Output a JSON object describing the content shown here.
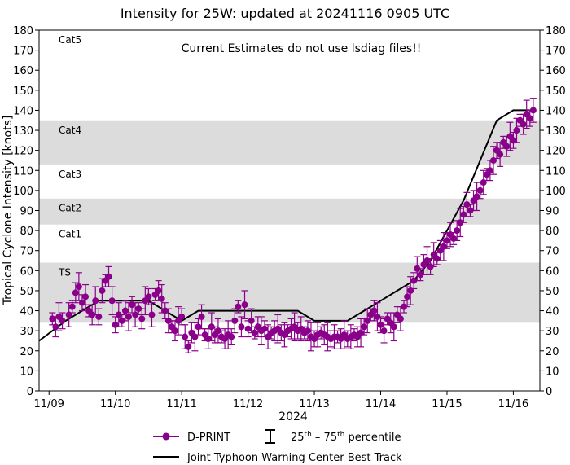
{
  "chart_data": {
    "type": "scatter",
    "title": "Intensity for 25W: updated at 20241116 0905 UTC",
    "annotation": "Current Estimates do not use lsdiag files!!",
    "ylabel": "Tropical Cyclone Intensity [knots]",
    "xlabel": "2024",
    "ylim": [
      0,
      180
    ],
    "yticks": [
      0,
      10,
      20,
      30,
      40,
      50,
      60,
      70,
      80,
      90,
      100,
      110,
      120,
      130,
      140,
      150,
      160,
      170,
      180
    ],
    "xlim": [
      -0.15,
      7.4
    ],
    "xticks": [
      {
        "pos": 0,
        "label": "11/09"
      },
      {
        "pos": 1,
        "label": "11/10"
      },
      {
        "pos": 2,
        "label": "11/11"
      },
      {
        "pos": 3,
        "label": "11/12"
      },
      {
        "pos": 4,
        "label": "11/13"
      },
      {
        "pos": 5,
        "label": "11/14"
      },
      {
        "pos": 6,
        "label": "11/15"
      },
      {
        "pos": 7,
        "label": "11/16"
      }
    ],
    "category_bands": [
      {
        "name": "TS",
        "low": 34,
        "high": 64,
        "shaded": true
      },
      {
        "name": "Cat1",
        "low": 64,
        "high": 83,
        "shaded": false
      },
      {
        "name": "Cat2",
        "low": 83,
        "high": 96,
        "shaded": true
      },
      {
        "name": "Cat3",
        "low": 96,
        "high": 113,
        "shaded": false
      },
      {
        "name": "Cat4",
        "low": 113,
        "high": 135,
        "shaded": true
      },
      {
        "name": "Cat5",
        "low": 135,
        "high": 180,
        "shaded": false
      }
    ],
    "colors": {
      "dprint": "#8b008b",
      "best_track": "#000000",
      "band": "#dcdcdc"
    },
    "series": [
      {
        "name": "Joint Typhoon Warning Center Best Track",
        "kind": "line",
        "x": [
          -0.15,
          0.25,
          0.75,
          1.0,
          1.5,
          1.75,
          2.0,
          2.25,
          2.5,
          2.75,
          3.0,
          3.25,
          3.5,
          3.75,
          4.0,
          4.25,
          4.5,
          4.75,
          5.0,
          5.25,
          5.5,
          5.75,
          6.0,
          6.25,
          6.5,
          6.75,
          7.0,
          7.25
        ],
        "y": [
          25,
          35,
          45,
          45,
          45,
          40,
          35,
          40,
          40,
          40,
          40,
          40,
          40,
          40,
          35,
          35,
          35,
          40,
          45,
          50,
          55,
          65,
          80,
          95,
          115,
          135,
          140,
          140
        ]
      },
      {
        "name": "D-PRINT",
        "kind": "points_with_errorbars",
        "errorbar_legend": "25th – 75th percentile",
        "points": [
          [
            0.05,
            36
          ],
          [
            0.1,
            32
          ],
          [
            0.15,
            37
          ],
          [
            0.2,
            35
          ],
          [
            0.3,
            38
          ],
          [
            0.35,
            42
          ],
          [
            0.4,
            49
          ],
          [
            0.45,
            52
          ],
          [
            0.5,
            44
          ],
          [
            0.55,
            47
          ],
          [
            0.6,
            40
          ],
          [
            0.65,
            38
          ],
          [
            0.7,
            45
          ],
          [
            0.75,
            37
          ],
          [
            0.8,
            50
          ],
          [
            0.85,
            55
          ],
          [
            0.9,
            57
          ],
          [
            0.95,
            45
          ],
          [
            1.0,
            33
          ],
          [
            1.05,
            38
          ],
          [
            1.1,
            35
          ],
          [
            1.15,
            40
          ],
          [
            1.2,
            37
          ],
          [
            1.25,
            43
          ],
          [
            1.3,
            38
          ],
          [
            1.35,
            41
          ],
          [
            1.4,
            36
          ],
          [
            1.45,
            45
          ],
          [
            1.5,
            47
          ],
          [
            1.55,
            38
          ],
          [
            1.6,
            48
          ],
          [
            1.65,
            50
          ],
          [
            1.7,
            46
          ],
          [
            1.75,
            40
          ],
          [
            1.8,
            35
          ],
          [
            1.85,
            32
          ],
          [
            1.9,
            30
          ],
          [
            1.95,
            35
          ],
          [
            2.0,
            37
          ],
          [
            2.05,
            27
          ],
          [
            2.1,
            22
          ],
          [
            2.15,
            29
          ],
          [
            2.2,
            27
          ],
          [
            2.25,
            32
          ],
          [
            2.3,
            37
          ],
          [
            2.35,
            28
          ],
          [
            2.4,
            26
          ],
          [
            2.45,
            32
          ],
          [
            2.5,
            28
          ],
          [
            2.55,
            30
          ],
          [
            2.6,
            27
          ],
          [
            2.65,
            26
          ],
          [
            2.7,
            28
          ],
          [
            2.75,
            27
          ],
          [
            2.8,
            35
          ],
          [
            2.85,
            42
          ],
          [
            2.9,
            32
          ],
          [
            2.95,
            43
          ],
          [
            3.0,
            31
          ],
          [
            3.05,
            35
          ],
          [
            3.1,
            29
          ],
          [
            3.15,
            32
          ],
          [
            3.2,
            30
          ],
          [
            3.25,
            31
          ],
          [
            3.3,
            27
          ],
          [
            3.35,
            29
          ],
          [
            3.4,
            30
          ],
          [
            3.45,
            31
          ],
          [
            3.5,
            29
          ],
          [
            3.55,
            28
          ],
          [
            3.6,
            30
          ],
          [
            3.65,
            31
          ],
          [
            3.7,
            32
          ],
          [
            3.75,
            30
          ],
          [
            3.8,
            31
          ],
          [
            3.85,
            29
          ],
          [
            3.9,
            30
          ],
          [
            3.95,
            27
          ],
          [
            4.0,
            26
          ],
          [
            4.05,
            28
          ],
          [
            4.1,
            29
          ],
          [
            4.15,
            28
          ],
          [
            4.2,
            27
          ],
          [
            4.25,
            26
          ],
          [
            4.3,
            27
          ],
          [
            4.35,
            27
          ],
          [
            4.4,
            26
          ],
          [
            4.45,
            28
          ],
          [
            4.5,
            26
          ],
          [
            4.55,
            27
          ],
          [
            4.6,
            28
          ],
          [
            4.65,
            27
          ],
          [
            4.7,
            29
          ],
          [
            4.75,
            32
          ],
          [
            4.8,
            35
          ],
          [
            4.85,
            38
          ],
          [
            4.9,
            40
          ],
          [
            4.95,
            37
          ],
          [
            5.0,
            33
          ],
          [
            5.05,
            30
          ],
          [
            5.1,
            36
          ],
          [
            5.15,
            34
          ],
          [
            5.2,
            32
          ],
          [
            5.25,
            38
          ],
          [
            5.3,
            36
          ],
          [
            5.35,
            42
          ],
          [
            5.4,
            47
          ],
          [
            5.45,
            50
          ],
          [
            5.5,
            55
          ],
          [
            5.55,
            61
          ],
          [
            5.6,
            58
          ],
          [
            5.65,
            63
          ],
          [
            5.7,
            65
          ],
          [
            5.75,
            62
          ],
          [
            5.8,
            68
          ],
          [
            5.85,
            66
          ],
          [
            5.9,
            70
          ],
          [
            5.95,
            72
          ],
          [
            6.0,
            75
          ],
          [
            6.05,
            78
          ],
          [
            6.1,
            76
          ],
          [
            6.15,
            80
          ],
          [
            6.2,
            84
          ],
          [
            6.25,
            88
          ],
          [
            6.3,
            93
          ],
          [
            6.35,
            90
          ],
          [
            6.4,
            95
          ],
          [
            6.45,
            97
          ],
          [
            6.5,
            100
          ],
          [
            6.55,
            104
          ],
          [
            6.6,
            108
          ],
          [
            6.65,
            110
          ],
          [
            6.7,
            115
          ],
          [
            6.75,
            120
          ],
          [
            6.8,
            118
          ],
          [
            6.85,
            124
          ],
          [
            6.9,
            122
          ],
          [
            6.95,
            127
          ],
          [
            7.0,
            125
          ],
          [
            7.05,
            130
          ],
          [
            7.1,
            135
          ],
          [
            7.15,
            133
          ],
          [
            7.2,
            138
          ],
          [
            7.25,
            136
          ],
          [
            7.3,
            140
          ]
        ]
      }
    ],
    "legend": {
      "placement": "bottom-center",
      "entries": [
        {
          "label": "D-PRINT",
          "marker": "point-line"
        },
        {
          "label_prefix": "25",
          "sup1": "th",
          "label_mid": " – 75",
          "sup2": "th",
          "label_suffix": " percentile",
          "marker": "errorbar"
        },
        {
          "label": "Joint Typhoon Warning Center Best Track",
          "marker": "line"
        }
      ]
    }
  }
}
